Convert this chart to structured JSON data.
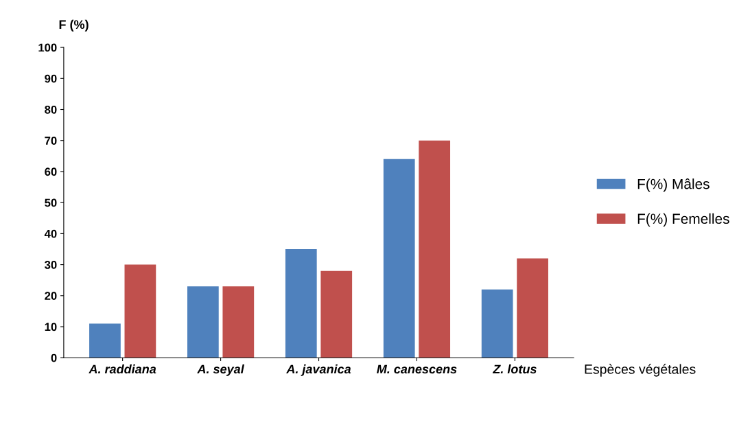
{
  "chart_data": {
    "type": "bar",
    "ylabel": "F (%)",
    "xlabel": "Espèces végétales",
    "categories": [
      "A. raddiana",
      "A. seyal",
      "A. javanica",
      "M. canescens",
      "Z. lotus"
    ],
    "series": [
      {
        "name": "F(%) Mâles",
        "color": "#4f81bd",
        "values": [
          11,
          23,
          35,
          64,
          22
        ]
      },
      {
        "name": "F(%) Femelles",
        "color": "#c0504d",
        "values": [
          30,
          23,
          28,
          70,
          32
        ]
      }
    ],
    "ylim": [
      0,
      100
    ],
    "yticks": [
      0,
      10,
      20,
      30,
      40,
      50,
      60,
      70,
      80,
      90,
      100
    ],
    "grid": false,
    "legend": "right"
  }
}
